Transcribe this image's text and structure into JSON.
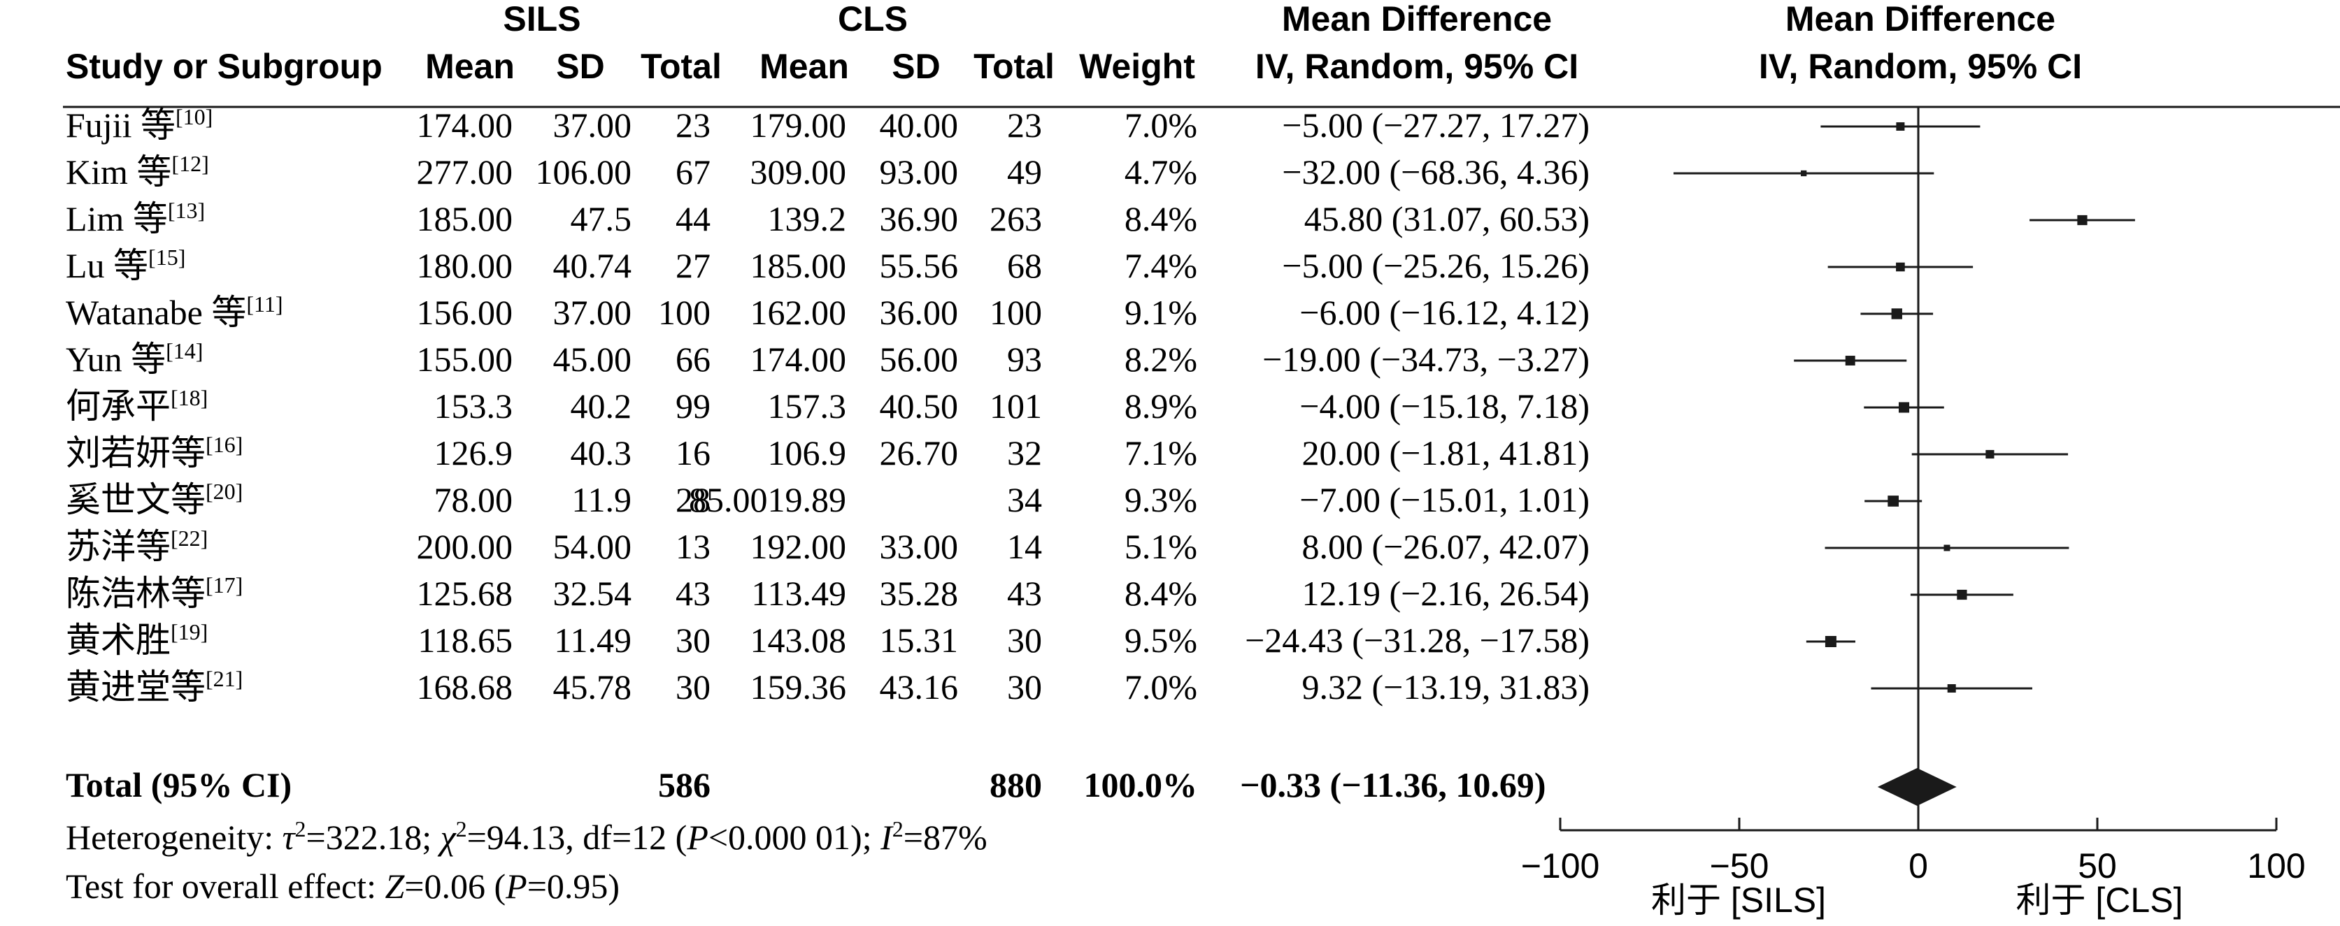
{
  "chart_data": {
    "type": "forest",
    "headers": {
      "group1": "SILS",
      "group2": "CLS",
      "study": "Study or Subgroup",
      "mean": "Mean",
      "sd": "SD",
      "total": "Total",
      "weight": "Weight",
      "md_title": "Mean Difference",
      "md_method": "IV, Random, 95% CI"
    },
    "studies": [
      {
        "name": "Fujii 等",
        "ref": "[10]",
        "m1": "174.00",
        "sd1": "37.00",
        "n1": "23",
        "m2": "179.00",
        "sd2": "40.00",
        "n2": "23",
        "weight": "7.0%",
        "ci_text": "−5.00 (−27.27, 17.27)",
        "md": -5.0,
        "lo": -27.27,
        "hi": 17.27,
        "w": 7.0
      },
      {
        "name": "Kim 等",
        "ref": "[12]",
        "m1": "277.00",
        "sd1": "106.00",
        "n1": "67",
        "m2": "309.00",
        "sd2": "93.00",
        "n2": "49",
        "weight": "4.7%",
        "ci_text": "−32.00 (−68.36, 4.36)",
        "md": -32.0,
        "lo": -68.36,
        "hi": 4.36,
        "w": 4.7
      },
      {
        "name": "Lim 等",
        "ref": "[13]",
        "m1": "185.00",
        "sd1": "47.5",
        "n1": "44",
        "m2": "139.2",
        "sd2": "36.90",
        "n2": "263",
        "weight": "8.4%",
        "ci_text": "45.80 (31.07, 60.53)",
        "md": 45.8,
        "lo": 31.07,
        "hi": 60.53,
        "w": 8.4
      },
      {
        "name": "Lu 等",
        "ref": "[15]",
        "m1": "180.00",
        "sd1": "40.74",
        "n1": "27",
        "m2": "185.00",
        "sd2": "55.56",
        "n2": "68",
        "weight": "7.4%",
        "ci_text": "−5.00 (−25.26, 15.26)",
        "md": -5.0,
        "lo": -25.26,
        "hi": 15.26,
        "w": 7.4
      },
      {
        "name": "Watanabe 等",
        "ref": "[11]",
        "m1": "156.00",
        "sd1": "37.00",
        "n1": "100",
        "m2": "162.00",
        "sd2": "36.00",
        "n2": "100",
        "weight": "9.1%",
        "ci_text": "−6.00 (−16.12, 4.12)",
        "md": -6.0,
        "lo": -16.12,
        "hi": 4.12,
        "w": 9.1
      },
      {
        "name": "Yun 等",
        "ref": "[14]",
        "m1": "155.00",
        "sd1": "45.00",
        "n1": "66",
        "m2": "174.00",
        "sd2": "56.00",
        "n2": "93",
        "weight": "8.2%",
        "ci_text": "−19.00 (−34.73, −3.27)",
        "md": -19.0,
        "lo": -34.73,
        "hi": -3.27,
        "w": 8.2
      },
      {
        "name": "何承平",
        "ref": "[18]",
        "m1": "153.3",
        "sd1": "40.2",
        "n1": "99",
        "m2": "157.3",
        "sd2": "40.50",
        "n2": "101",
        "weight": "8.9%",
        "ci_text": "−4.00 (−15.18, 7.18)",
        "md": -4.0,
        "lo": -15.18,
        "hi": 7.18,
        "w": 8.9
      },
      {
        "name": "刘若妍等",
        "ref": "[16]",
        "m1": "126.9",
        "sd1": "40.3",
        "n1": "16",
        "m2": "106.9",
        "sd2": "26.70",
        "n2": "32",
        "weight": "7.1%",
        "ci_text": "20.00 (−1.81, 41.81)",
        "md": 20.0,
        "lo": -1.81,
        "hi": 41.81,
        "w": 7.1
      },
      {
        "name": "奚世文等",
        "ref": "[20]",
        "m1": "78.00",
        "sd1": "11.9",
        "n1": "28",
        "m2": "85.0019.89",
        "sd2": "",
        "n2": "34",
        "weight": "9.3%",
        "ci_text": "−7.00 (−15.01, 1.01)",
        "md": -7.0,
        "lo": -15.01,
        "hi": 1.01,
        "w": 9.3
      },
      {
        "name": "苏洋等",
        "ref": "[22]",
        "m1": "200.00",
        "sd1": "54.00",
        "n1": "13",
        "m2": "192.00",
        "sd2": "33.00",
        "n2": "14",
        "weight": "5.1%",
        "ci_text": "8.00 (−26.07, 42.07)",
        "md": 8.0,
        "lo": -26.07,
        "hi": 42.07,
        "w": 5.1
      },
      {
        "name": "陈浩林等",
        "ref": "[17]",
        "m1": "125.68",
        "sd1": "32.54",
        "n1": "43",
        "m2": "113.49",
        "sd2": "35.28",
        "n2": "43",
        "weight": "8.4%",
        "ci_text": "12.19 (−2.16, 26.54)",
        "md": 12.19,
        "lo": -2.16,
        "hi": 26.54,
        "w": 8.4
      },
      {
        "name": "黄术胜",
        "ref": "[19]",
        "m1": "118.65",
        "sd1": "11.49",
        "n1": "30",
        "m2": "143.08",
        "sd2": "15.31",
        "n2": "30",
        "weight": "9.5%",
        "ci_text": "−24.43 (−31.28, −17.58)",
        "md": -24.43,
        "lo": -31.28,
        "hi": -17.58,
        "w": 9.5
      },
      {
        "name": "黄进堂等",
        "ref": "[21]",
        "m1": "168.68",
        "sd1": "45.78",
        "n1": "30",
        "m2": "159.36",
        "sd2": "43.16",
        "n2": "30",
        "weight": "7.0%",
        "ci_text": "9.32 (−13.19, 31.83)",
        "md": 9.32,
        "lo": -13.19,
        "hi": 31.83,
        "w": 7.0
      }
    ],
    "total": {
      "label": "Total (95% CI)",
      "n1": "586",
      "n2": "880",
      "weight": "100.0%",
      "ci_text": "−0.33 (−11.36, 10.69)",
      "md": -0.33,
      "lo": -11.36,
      "hi": 10.69
    },
    "heterogeneity": {
      "prefix": "Heterogeneity: ",
      "tau_sym": "τ",
      "tau_val": "=322.18; ",
      "chi_sym": "χ",
      "chi_val": "=94.13, df=12 (",
      "p_sym": "P",
      "p_val": "<0.000 01); ",
      "i_sym": "I",
      "i_val": "=87%",
      "sq": "2"
    },
    "overall": {
      "prefix": "Test for overall effect: ",
      "z_sym": "Z",
      "z_val": "=0.06 (",
      "p_sym": "P",
      "p_val": "=0.95)"
    },
    "axis": {
      "min": -100,
      "max": 100,
      "ticks": [
        -100,
        -50,
        0,
        50,
        100
      ],
      "tick_labels": [
        "−100",
        "−50",
        "0",
        "50",
        "100"
      ],
      "favours_left": "利于 [SILS]",
      "favours_right": "利于 [CLS]"
    }
  }
}
